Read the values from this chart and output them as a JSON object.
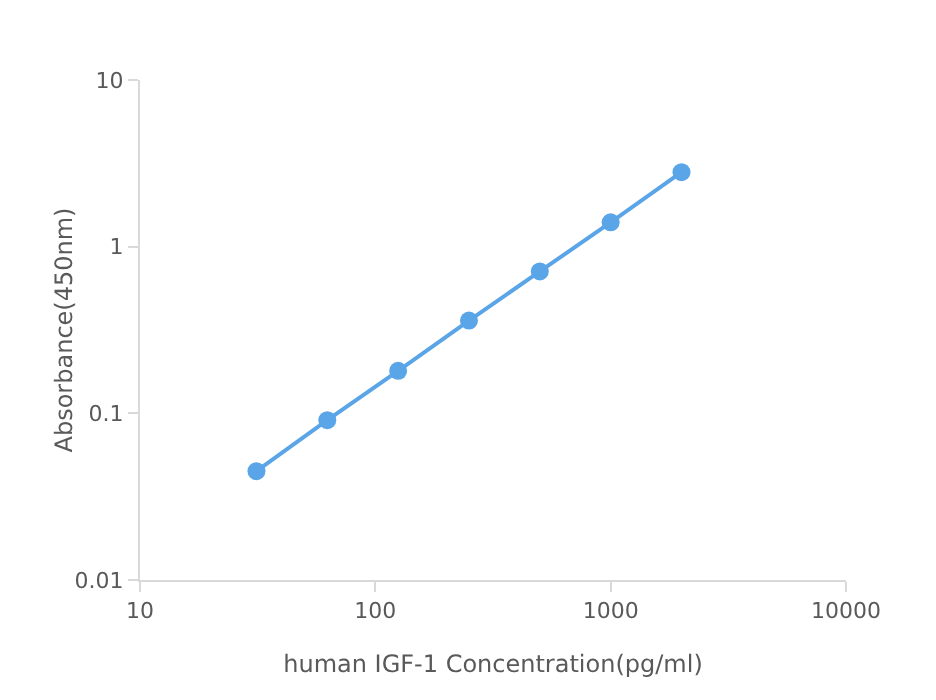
{
  "chart_data": {
    "type": "line",
    "xlabel": "human IGF-1 Concentration(pg/ml)",
    "ylabel": "Absorbance(450nm)",
    "x": [
      31.25,
      62.5,
      125,
      250,
      500,
      1000,
      2000
    ],
    "series": [
      {
        "color": "#5aa5e8",
        "values": [
          0.045,
          0.091,
          0.18,
          0.36,
          0.71,
          1.4,
          2.8
        ]
      }
    ],
    "log": "xy",
    "xlim": [
      10,
      10000
    ],
    "ylim": [
      0.01,
      10
    ],
    "xticks": [
      10,
      100,
      1000,
      10000
    ],
    "yticks": [
      0.01,
      0.1,
      1,
      10
    ],
    "grid": false,
    "marker": "circle",
    "line_style": "solid"
  }
}
